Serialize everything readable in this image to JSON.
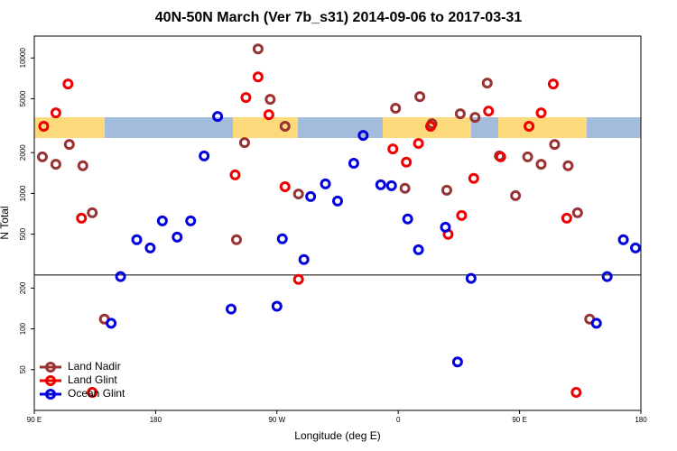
{
  "chart_data": {
    "type": "scatter",
    "title": "40N-50N March (Ver 7b_s31)   2014-09-06 to 2017-03-31",
    "xlabel": "Longitude (deg E)",
    "ylabel": "N Total",
    "xlim": [
      90,
      540
    ],
    "xticks": [
      {
        "value": 90,
        "label": "90 E"
      },
      {
        "value": 180,
        "label": "180"
      },
      {
        "value": 270,
        "label": "90 W"
      },
      {
        "value": 360,
        "label": "0"
      },
      {
        "value": 450,
        "label": "90 E"
      },
      {
        "value": 540,
        "label": "180"
      }
    ],
    "ylim": [
      25,
      14500
    ],
    "log_y": true,
    "yticks": [
      50,
      100,
      200,
      500,
      1000,
      2000,
      5000,
      10000
    ],
    "hline": 250,
    "legend": "lower left",
    "series": [
      {
        "name": "Land Nadir",
        "color": "#993333",
        "x": [
          96,
          106,
          116,
          126,
          133,
          142,
          240,
          246,
          256,
          265,
          276,
          286,
          358,
          365,
          376,
          385,
          396,
          406,
          417,
          426,
          435,
          447,
          456,
          466,
          476,
          486,
          493,
          502
        ],
        "values": [
          1860,
          1640,
          2300,
          1600,
          720,
          118,
          455,
          2370,
          11650,
          4950,
          3130,
          990,
          4250,
          1090,
          5180,
          3270,
          1055,
          3870,
          3640,
          6520,
          1890,
          962,
          1860,
          1640,
          2300,
          1600,
          720,
          118
        ]
      },
      {
        "name": "Land Glint",
        "color": "#ee0000",
        "x": [
          97,
          106,
          115,
          125,
          133,
          239,
          247,
          256,
          264,
          276,
          286,
          356,
          366,
          375,
          384,
          407,
          416,
          397,
          427,
          436,
          457,
          466,
          475,
          485,
          492
        ],
        "values": [
          3130,
          3930,
          6420,
          656,
          34,
          1370,
          5100,
          7250,
          3810,
          1120,
          232,
          2130,
          1700,
          2340,
          3130,
          687,
          1290,
          499,
          4050,
          1860,
          3130,
          3930,
          6420,
          656,
          34
        ]
      },
      {
        "name": "Ocean Glint",
        "color": "#0000dd",
        "x": [
          147,
          154,
          166,
          176,
          185,
          196,
          206,
          216,
          226,
          236,
          270,
          274,
          290,
          295,
          306,
          315,
          327,
          334,
          347,
          355,
          367,
          375,
          395,
          404,
          414,
          507,
          515,
          527,
          536
        ],
        "values": [
          110,
          243,
          455,
          396,
          627,
          476,
          627,
          1890,
          3700,
          140,
          147,
          462,
          325,
          948,
          1175,
          878,
          1670,
          2680,
          1157,
          1140,
          647,
          384,
          563,
          57,
          236,
          110,
          243,
          455,
          396
        ]
      }
    ]
  }
}
